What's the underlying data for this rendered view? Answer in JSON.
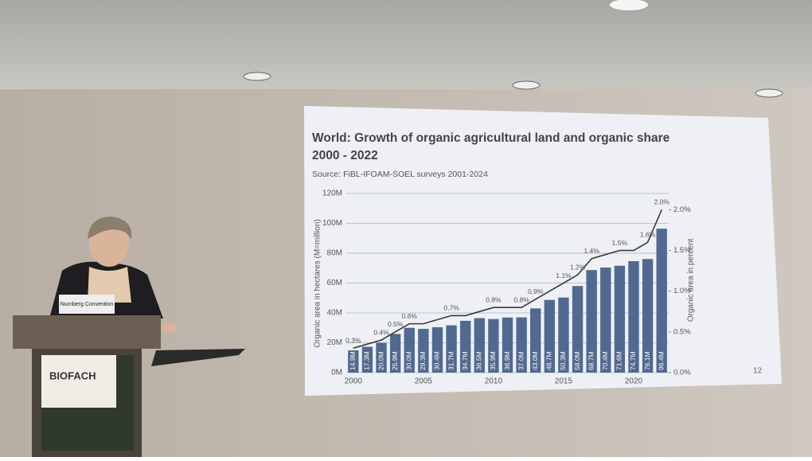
{
  "chart_data": {
    "type": "bar_line",
    "title": "World: Growth of organic agricultural land and organic share 2000 - 2022",
    "subtitle": "Source: FiBL-IFOAM-SOEL surveys 2001-2024",
    "y_label": "Organic area in hectares (M=million)",
    "y2_label": "Organic area in percent",
    "page_number": "12",
    "categories": [
      2000,
      null,
      null,
      null,
      null,
      2005,
      null,
      null,
      null,
      null,
      2010,
      null,
      null,
      null,
      null,
      2015,
      null,
      null,
      null,
      null,
      2020,
      null,
      null
    ],
    "series": [
      {
        "type": "bar",
        "color": "#51698f",
        "values": [
          14.9,
          17.3,
          20.0,
          25.9,
          30.0,
          29.3,
          30.4,
          31.7,
          34.7,
          36.5,
          35.9,
          36.9,
          37.0,
          43.0,
          48.7,
          50.3,
          58.0,
          68.7,
          70.4,
          71.6,
          74.7,
          76.1,
          96.4
        ],
        "value_labels": [
          "14.9M",
          "17.3M",
          "20.0M",
          "25.9M",
          "30.0M",
          "29.3M",
          "30.4M",
          "31.7M",
          "34.7M",
          "36.5M",
          "35.9M",
          "36.9M",
          "37.0M",
          "43.0M",
          "48.7M",
          "50.3M",
          "58.0M",
          "68.7M",
          "70.4M",
          "71.6M",
          "74.7M",
          "76.1M",
          "96.4M"
        ]
      },
      {
        "type": "line",
        "color": "#3a3a3a",
        "axis": "y2",
        "values": [
          0.3,
          0.35,
          0.4,
          0.5,
          0.6,
          0.6,
          0.65,
          0.7,
          0.7,
          0.75,
          0.8,
          0.8,
          0.8,
          0.9,
          1.0,
          1.1,
          1.2,
          1.4,
          1.45,
          1.5,
          1.5,
          1.6,
          2.0
        ],
        "value_labels": [
          "0.3%",
          null,
          "0.4%",
          "0.5%",
          "0.6%",
          null,
          null,
          "0.7%",
          null,
          null,
          "0.8%",
          null,
          "0.8%",
          "0.9%",
          null,
          "1.1%",
          "1.2%",
          "1.4%",
          null,
          "1.5%",
          null,
          "1.6%",
          "2.0%"
        ]
      }
    ],
    "ylim": [
      0,
      120
    ],
    "yticks": [
      {
        "value": 0,
        "label": "0M"
      },
      {
        "value": 20,
        "label": "20M"
      },
      {
        "value": 40,
        "label": "40M"
      },
      {
        "value": 60,
        "label": "60M"
      },
      {
        "value": 80,
        "label": "80M"
      },
      {
        "value": 100,
        "label": "100M"
      },
      {
        "value": 120,
        "label": "120M"
      }
    ],
    "y2lim": [
      0,
      2.2
    ],
    "y2ticks": [
      {
        "value": 0,
        "label": "0.0%"
      },
      {
        "value": 0.5,
        "label": "0.5%"
      },
      {
        "value": 1.0,
        "label": "1.0%"
      },
      {
        "value": 1.5,
        "label": "1.5%"
      },
      {
        "value": 2.0,
        "label": "2.0%"
      }
    ],
    "grid": true
  },
  "podium": {
    "sign": "Nurnberg Convention",
    "banner": "BIOFACH"
  }
}
